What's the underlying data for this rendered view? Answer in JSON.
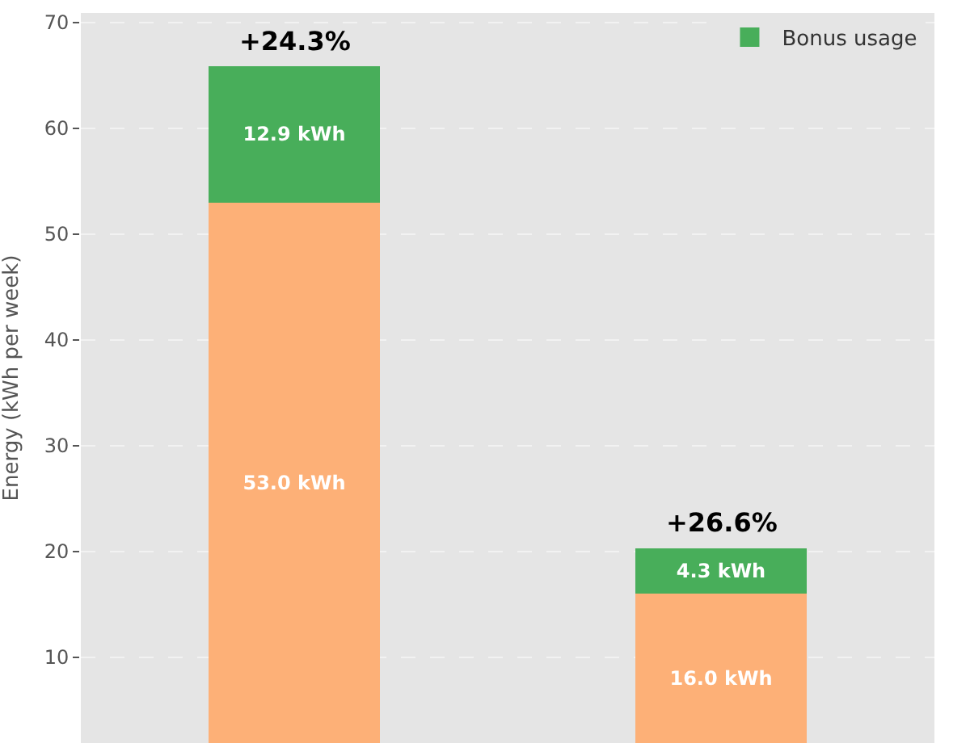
{
  "chart_data": {
    "type": "bar",
    "stacked": true,
    "ylabel": "Energy (kWh per week)",
    "categories": [
      null,
      null
    ],
    "series": [
      {
        "color": "#fdb077",
        "values": [
          53.0,
          16.0
        ],
        "value_labels": [
          "53.0 kWh",
          "16.0 kWh"
        ]
      },
      {
        "name": "Bonus usage",
        "color": "#48ae5a",
        "values": [
          12.9,
          4.3
        ],
        "value_labels": [
          "12.9 kWh",
          "4.3 kWh"
        ]
      }
    ],
    "annotations": [
      {
        "text": "+24.3%",
        "y": 65.9
      },
      {
        "text": "+26.6%",
        "y": 20.3
      }
    ],
    "ylim": [
      1.9,
      70.9
    ],
    "yticks": [
      10,
      20,
      30,
      40,
      50,
      60,
      70
    ],
    "grid": "y",
    "legend": "top right"
  }
}
